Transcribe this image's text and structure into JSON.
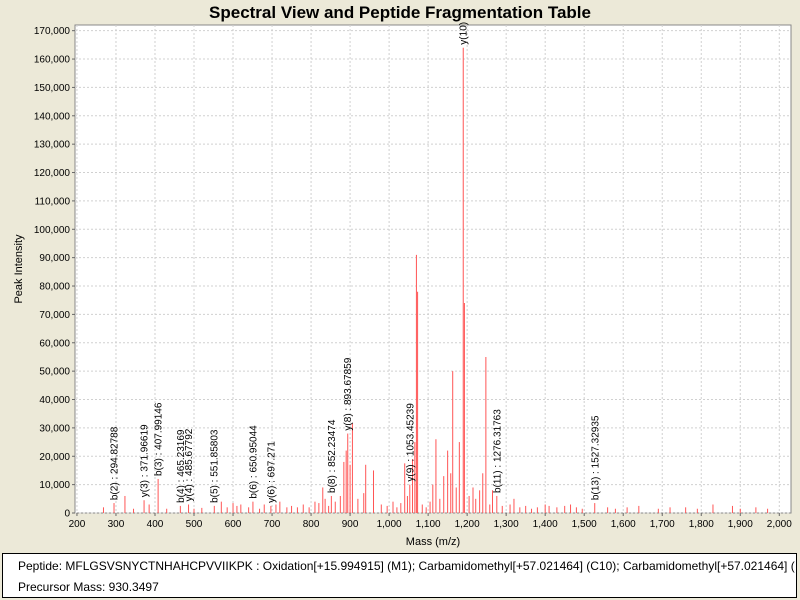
{
  "chart_data": {
    "type": "bar",
    "title": "Spectral View and Peptide Fragmentation Table",
    "xlabel": "Mass (m/z)",
    "ylabel": "Peak Intensity",
    "xlim": [
      195,
      2030
    ],
    "ylim": [
      0,
      172000
    ],
    "xticks": [
      200,
      300,
      400,
      500,
      600,
      700,
      800,
      900,
      1000,
      1100,
      1200,
      1300,
      1400,
      1500,
      1600,
      1700,
      1800,
      1900,
      2000
    ],
    "xtick_labels": [
      "200",
      "300",
      "400",
      "500",
      "600",
      "700",
      "800",
      "900",
      "1,000",
      "1,100",
      "1,200",
      "1,300",
      "1,400",
      "1,500",
      "1,600",
      "1,700",
      "1,800",
      "1,900",
      "2,000"
    ],
    "yticks": [
      0,
      10000,
      20000,
      30000,
      40000,
      50000,
      60000,
      70000,
      80000,
      90000,
      100000,
      110000,
      120000,
      130000,
      140000,
      150000,
      160000,
      170000
    ],
    "ytick_labels": [
      "0",
      "10,000",
      "20,000",
      "30,000",
      "40,000",
      "50,000",
      "60,000",
      "70,000",
      "80,000",
      "90,000",
      "100,000",
      "110,000",
      "120,000",
      "130,000",
      "140,000",
      "150,000",
      "160,000",
      "170,000"
    ],
    "grid": true,
    "peak_color": "#ff5555",
    "peaks": [
      [
        268,
        2000
      ],
      [
        295,
        3500
      ],
      [
        323,
        6000
      ],
      [
        345,
        1500
      ],
      [
        372,
        4500
      ],
      [
        385,
        3000
      ],
      [
        408,
        12000
      ],
      [
        430,
        1500
      ],
      [
        465,
        2500
      ],
      [
        486,
        3000
      ],
      [
        500,
        1500
      ],
      [
        520,
        1800
      ],
      [
        552,
        2500
      ],
      [
        570,
        4000
      ],
      [
        585,
        2000
      ],
      [
        600,
        3500
      ],
      [
        610,
        2500
      ],
      [
        620,
        3000
      ],
      [
        640,
        2000
      ],
      [
        651,
        4000
      ],
      [
        668,
        1500
      ],
      [
        680,
        3000
      ],
      [
        697,
        2500
      ],
      [
        710,
        3000
      ],
      [
        720,
        4000
      ],
      [
        738,
        2000
      ],
      [
        750,
        2500
      ],
      [
        765,
        2000
      ],
      [
        780,
        3000
      ],
      [
        795,
        2000
      ],
      [
        810,
        4000
      ],
      [
        820,
        3500
      ],
      [
        830,
        9000
      ],
      [
        836,
        5000
      ],
      [
        845,
        2500
      ],
      [
        852,
        6000
      ],
      [
        862,
        4000
      ],
      [
        875,
        6000
      ],
      [
        884,
        18000
      ],
      [
        890,
        22000
      ],
      [
        894,
        28000
      ],
      [
        900,
        17000
      ],
      [
        906,
        31500
      ],
      [
        920,
        5000
      ],
      [
        935,
        7000
      ],
      [
        940,
        17000
      ],
      [
        960,
        15000
      ],
      [
        980,
        3000
      ],
      [
        995,
        2500
      ],
      [
        1010,
        4000
      ],
      [
        1020,
        2000
      ],
      [
        1030,
        3500
      ],
      [
        1040,
        17500
      ],
      [
        1047,
        6000
      ],
      [
        1053,
        10000
      ],
      [
        1060,
        19000
      ],
      [
        1066,
        25000
      ],
      [
        1070,
        91000
      ],
      [
        1073,
        78000
      ],
      [
        1085,
        3000
      ],
      [
        1095,
        2000
      ],
      [
        1105,
        4000
      ],
      [
        1112,
        10000
      ],
      [
        1120,
        26000
      ],
      [
        1130,
        5000
      ],
      [
        1140,
        13000
      ],
      [
        1150,
        22000
      ],
      [
        1158,
        14000
      ],
      [
        1163,
        50000
      ],
      [
        1172,
        9000
      ],
      [
        1180,
        25000
      ],
      [
        1190,
        164000
      ],
      [
        1193,
        74000
      ],
      [
        1205,
        6000
      ],
      [
        1215,
        9000
      ],
      [
        1222,
        5000
      ],
      [
        1232,
        8000
      ],
      [
        1240,
        14000
      ],
      [
        1248,
        55000
      ],
      [
        1258,
        3000
      ],
      [
        1265,
        8000
      ],
      [
        1276,
        6000
      ],
      [
        1290,
        2500
      ],
      [
        1310,
        3000
      ],
      [
        1320,
        5000
      ],
      [
        1335,
        2000
      ],
      [
        1350,
        2500
      ],
      [
        1365,
        1500
      ],
      [
        1380,
        2000
      ],
      [
        1400,
        3000
      ],
      [
        1410,
        2500
      ],
      [
        1430,
        2000
      ],
      [
        1450,
        2500
      ],
      [
        1465,
        3000
      ],
      [
        1480,
        2000
      ],
      [
        1495,
        1500
      ],
      [
        1527,
        3500
      ],
      [
        1560,
        2000
      ],
      [
        1580,
        1500
      ],
      [
        1610,
        2000
      ],
      [
        1640,
        2500
      ],
      [
        1690,
        1500
      ],
      [
        1720,
        2000
      ],
      [
        1760,
        2000
      ],
      [
        1790,
        1500
      ],
      [
        1830,
        3000
      ],
      [
        1880,
        2500
      ],
      [
        1900,
        1500
      ],
      [
        1940,
        2000
      ],
      [
        1970,
        1500
      ]
    ],
    "annotations": [
      {
        "x": 294.82788,
        "y": 3500,
        "label": "b(2) : 294.82788"
      },
      {
        "x": 371.96619,
        "y": 4500,
        "label": "y(3) : 371.96619"
      },
      {
        "x": 407.99146,
        "y": 12000,
        "label": "b(3) : 407.99146"
      },
      {
        "x": 465.23169,
        "y": 2500,
        "label": "b(4) : 465.23169"
      },
      {
        "x": 485.67792,
        "y": 3000,
        "label": "y(4) : 485.67792"
      },
      {
        "x": 551.85803,
        "y": 2500,
        "label": "b(5) : 551.85803"
      },
      {
        "x": 650.95044,
        "y": 4000,
        "label": "b(6) : 650.95044"
      },
      {
        "x": 697.271,
        "y": 2500,
        "label": "y(6) : 697.271"
      },
      {
        "x": 852.23474,
        "y": 6000,
        "label": "b(8) : 852.23474"
      },
      {
        "x": 893.67859,
        "y": 28000,
        "label": "y(8) : 893.67859"
      },
      {
        "x": 1053.45239,
        "y": 10000,
        "label": "y(9) : 1053.45239"
      },
      {
        "x": 1190,
        "y": 164000,
        "label": "y(10)"
      },
      {
        "x": 1276.31763,
        "y": 6000,
        "label": "b(11) : 1276.31763"
      },
      {
        "x": 1527.32935,
        "y": 3500,
        "label": "b(13) : 1527.32935"
      }
    ]
  },
  "info": {
    "peptide_text": "Peptide: MFLGSVSNYCTNHAHCPVVIIKPK : Oxidation[+15.994915] (M1); Carbamidomethyl[+57.021464] (C10); Carbamidomethyl[+57.021464] (",
    "precursor_text": "Precursor Mass: 930.3497"
  }
}
